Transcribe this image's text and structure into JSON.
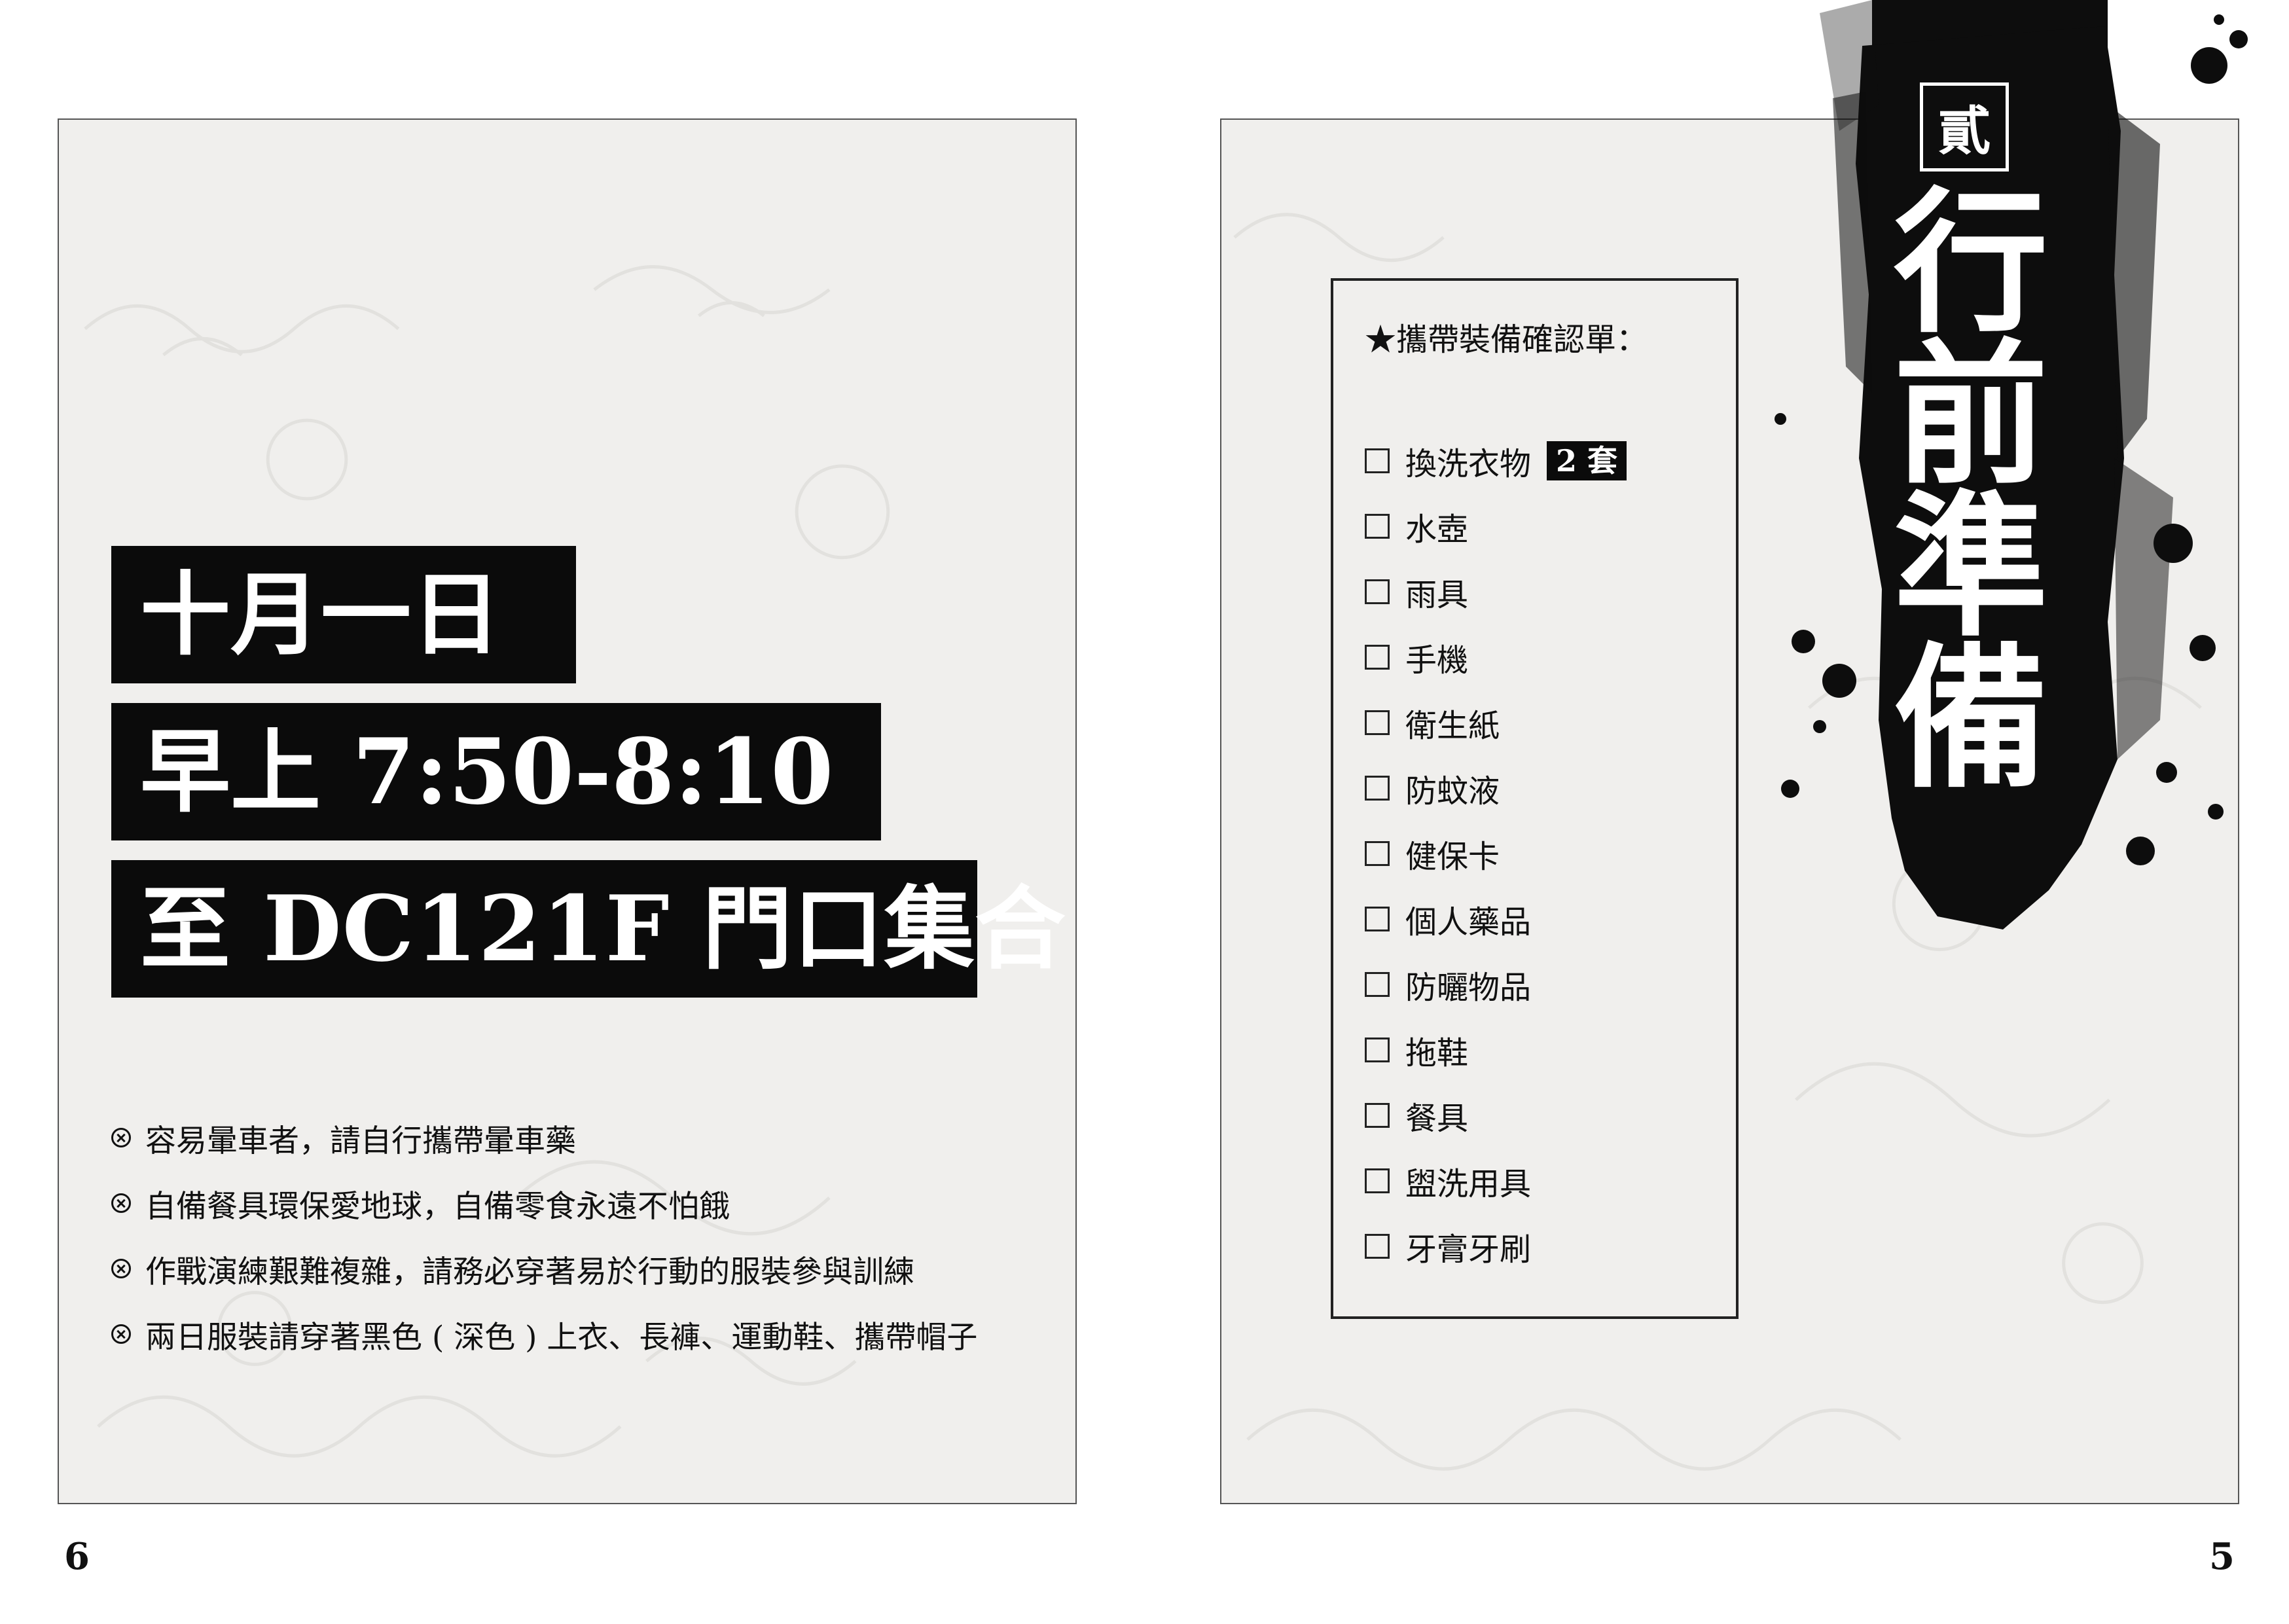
{
  "left_page": {
    "date": "十月一日",
    "time": "早上 7:50-8:10",
    "place": "至 DC121F 門口集合",
    "notes": [
      "容易暈車者，請自行攜帶暈車藥",
      "自備餐具環保愛地球，自備零食永遠不怕餓",
      "作戰演練艱難複雜，請務必穿著易於行動的服裝參與訓練",
      "兩日服裝請穿著黑色 ( 深色 ) 上衣、長褲、運動鞋、攜帶帽子"
    ],
    "page_number": "6"
  },
  "right_page": {
    "chapter_number": "貳",
    "chapter_title": "行前準備",
    "checklist_title": "★攜帶裝備確認單：",
    "items": [
      {
        "label": "換洗衣物",
        "badge": "2 套"
      },
      {
        "label": "水壺"
      },
      {
        "label": "雨具"
      },
      {
        "label": "手機"
      },
      {
        "label": "衛生紙"
      },
      {
        "label": "防蚊液"
      },
      {
        "label": "健保卡"
      },
      {
        "label": "個人藥品"
      },
      {
        "label": "防曬物品"
      },
      {
        "label": "拖鞋"
      },
      {
        "label": "餐具"
      },
      {
        "label": "盥洗用具"
      },
      {
        "label": "牙膏牙刷"
      }
    ],
    "page_number": "5"
  },
  "colors": {
    "panel_bg": "#f0efed",
    "ink": "#0b0b0b",
    "text": "#111111"
  }
}
